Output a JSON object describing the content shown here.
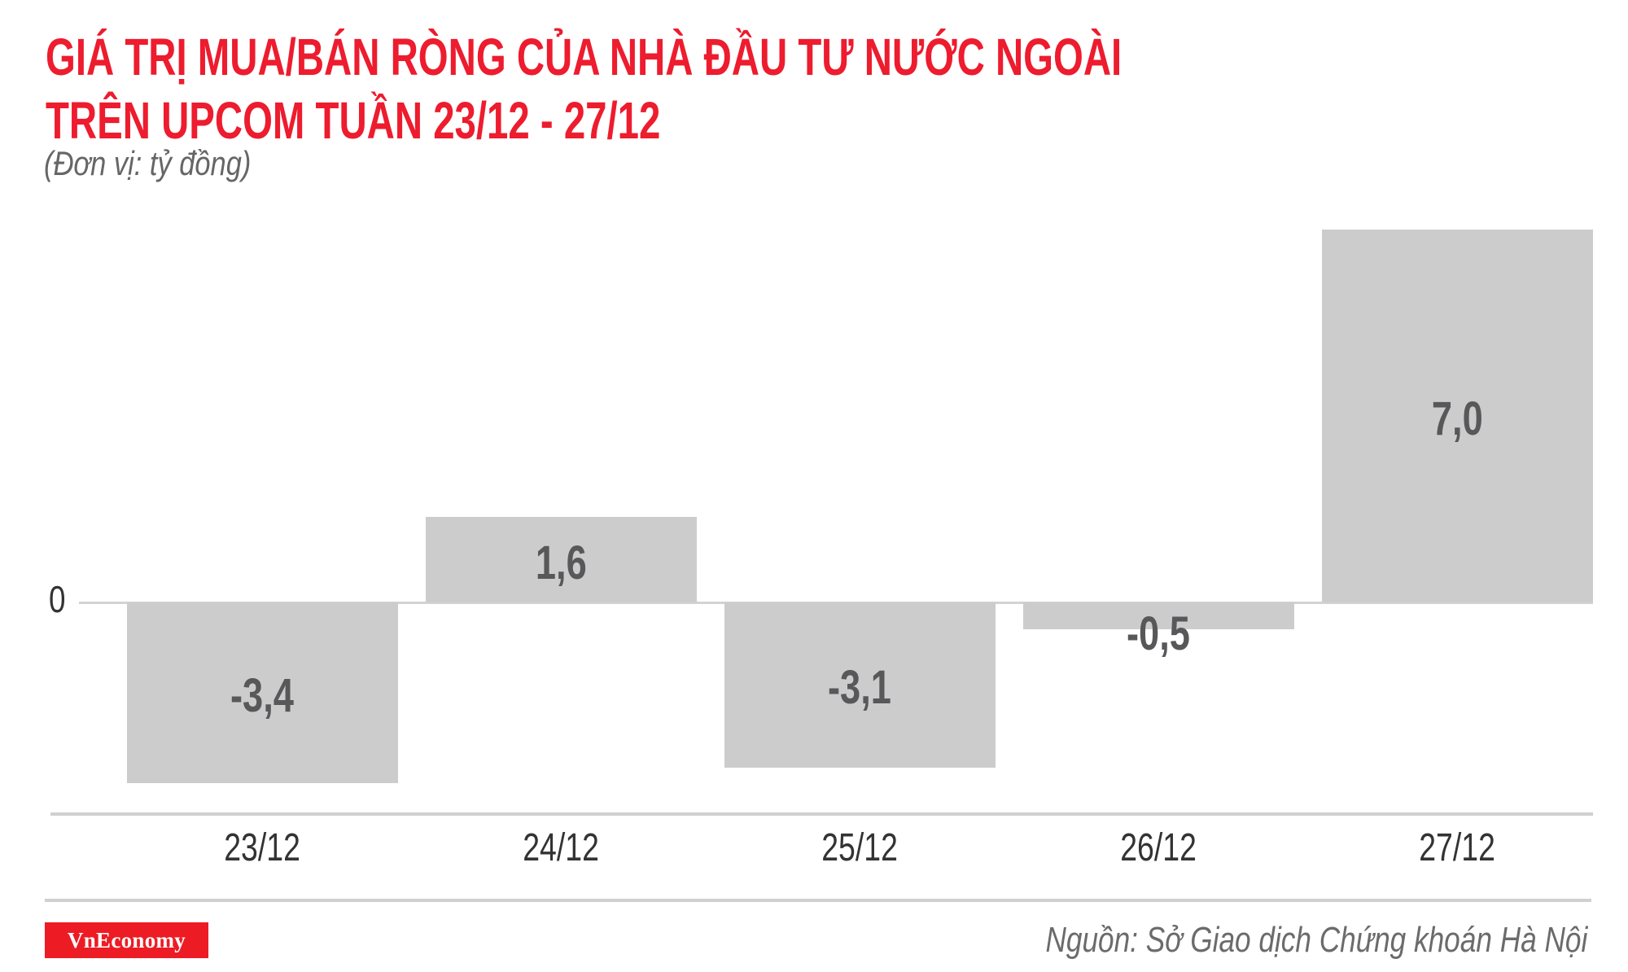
{
  "header": {
    "title_line1": "GIÁ TRỊ MUA/BÁN RÒNG CỦA NHÀ ĐẦU TƯ NƯỚC NGOÀI",
    "title_line2": "TRÊN UPCOM TUẦN 23/12 - 27/12",
    "unit": "(Đơn vị: tỷ đồng)"
  },
  "axis": {
    "zero_label": "0"
  },
  "bars": [
    {
      "category": "23/12",
      "value": -3.4,
      "label": "-3,4"
    },
    {
      "category": "24/12",
      "value": 1.6,
      "label": "1,6"
    },
    {
      "category": "25/12",
      "value": -3.1,
      "label": "-3,1"
    },
    {
      "category": "26/12",
      "value": -0.5,
      "label": "-0,5"
    },
    {
      "category": "27/12",
      "value": 7.0,
      "label": "7,0"
    }
  ],
  "footer": {
    "logo": "VnEconomy",
    "source": "Nguồn: Sở Giao dịch Chứng khoán Hà Nội"
  },
  "colors": {
    "title": "#ED1C2E",
    "bar": "#CDCCCD",
    "bar_label": "#58585A",
    "logo_bg": "#ED1C24"
  },
  "chart_data": {
    "type": "bar",
    "title": "GIÁ TRỊ MUA/BÁN RÒNG CỦA NHÀ ĐẦU TƯ NƯỚC NGOÀI TRÊN UPCOM TUẦN 23/12 - 27/12",
    "subtitle": "(Đơn vị: tỷ đồng)",
    "categories": [
      "23/12",
      "24/12",
      "25/12",
      "26/12",
      "27/12"
    ],
    "values": [
      -3.4,
      1.6,
      -3.1,
      -0.5,
      7.0
    ],
    "data_labels": [
      "-3,4",
      "1,6",
      "-3,1",
      "-0,5",
      "7,0"
    ],
    "xlabel": "",
    "ylabel": "tỷ đồng",
    "y_ticks": [
      0
    ],
    "ylim": [
      -3.4,
      7.0
    ],
    "grid": false,
    "legend": null,
    "source": "Nguồn: Sở Giao dịch Chứng khoán Hà Nội"
  }
}
